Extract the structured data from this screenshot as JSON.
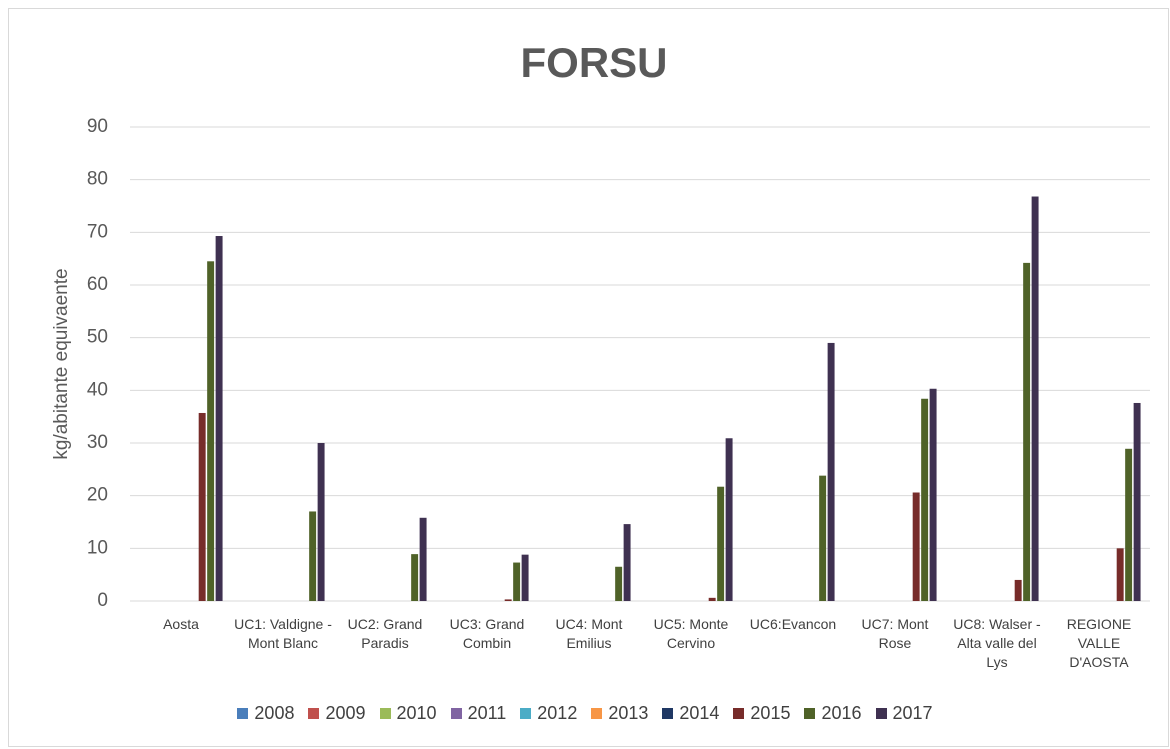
{
  "chart_data": {
    "type": "bar",
    "title": "FORSU",
    "y_label": "kg/abitante equivaente",
    "categories": [
      "Aosta",
      "UC1: Valdigne - Mont Blanc",
      "UC2: Grand Paradis",
      "UC3: Grand Combin",
      "UC4: Mont Emilius",
      "UC5: Monte Cervino",
      "UC6:Evancon",
      "UC7: Mont Rose",
      "UC8: Walser - Alta valle del Lys",
      "REGIONE VALLE D'AOSTA"
    ],
    "series": [
      {
        "name": "2008",
        "color": "#4a7ebb",
        "values": [
          0,
          0,
          0,
          0,
          0,
          0,
          0,
          0,
          0,
          0
        ]
      },
      {
        "name": "2009",
        "color": "#c0504d",
        "values": [
          0,
          0,
          0,
          0,
          0,
          0,
          0,
          0,
          0,
          0
        ]
      },
      {
        "name": "2010",
        "color": "#9bbb59",
        "values": [
          0,
          0,
          0,
          0,
          0,
          0,
          0,
          0,
          0,
          0
        ]
      },
      {
        "name": "2011",
        "color": "#8064a2",
        "values": [
          0,
          0,
          0,
          0,
          0,
          0,
          0,
          0,
          0,
          0
        ]
      },
      {
        "name": "2012",
        "color": "#4bacc6",
        "values": [
          0,
          0,
          0,
          0,
          0,
          0,
          0,
          0,
          0,
          0
        ]
      },
      {
        "name": "2013",
        "color": "#f79646",
        "values": [
          0,
          0,
          0,
          0,
          0,
          0,
          0,
          0,
          0,
          0
        ]
      },
      {
        "name": "2014",
        "color": "#1f3864",
        "values": [
          0,
          0,
          0,
          0,
          0,
          0,
          0,
          0,
          0,
          0
        ]
      },
      {
        "name": "2015",
        "color": "#772c2a",
        "values": [
          35.7,
          0,
          0,
          0.3,
          0,
          0.6,
          0,
          20.6,
          4,
          10
        ]
      },
      {
        "name": "2016",
        "color": "#4f6228",
        "values": [
          64.5,
          17,
          8.9,
          7.3,
          6.5,
          21.7,
          23.8,
          38.4,
          64.2,
          28.9
        ]
      },
      {
        "name": "2017",
        "color": "#3f3151",
        "values": [
          69.3,
          30,
          15.8,
          8.8,
          14.6,
          30.9,
          49,
          40.3,
          76.8,
          37.6
        ]
      }
    ],
    "ylim": [
      0,
      90
    ],
    "yticks": [
      0,
      10,
      20,
      30,
      40,
      50,
      60,
      70,
      80,
      90
    ],
    "grid": true
  }
}
